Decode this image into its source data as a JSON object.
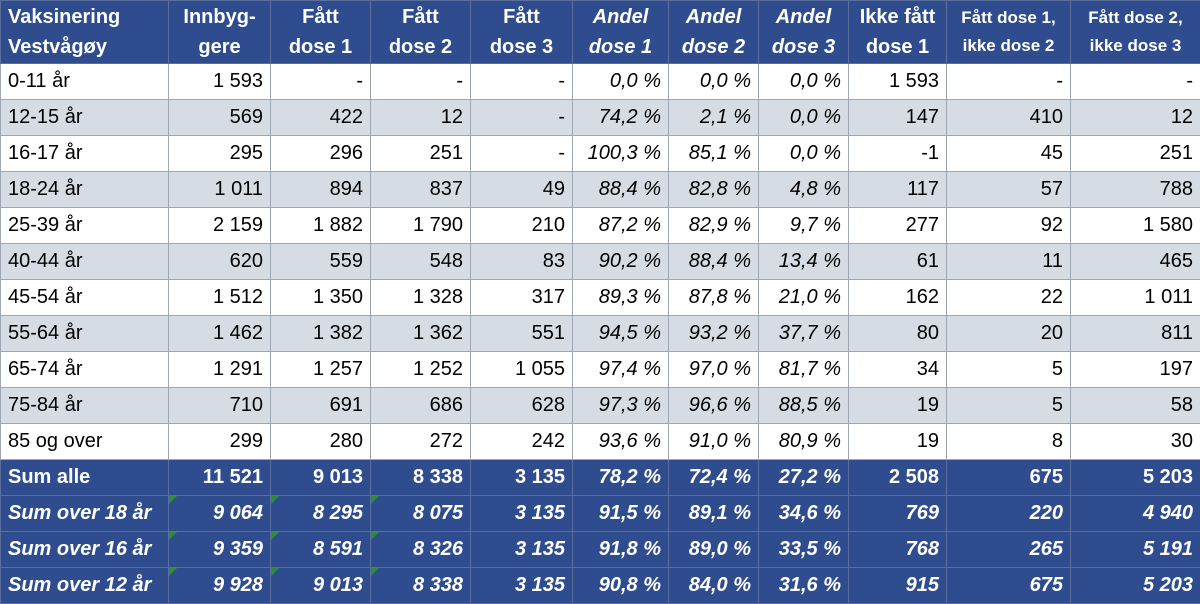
{
  "header": [
    {
      "l1": "Vaksinering",
      "l2": "Vestvågøy"
    },
    {
      "l1": "Innbyg-",
      "l2": "gere"
    },
    {
      "l1": "Fått",
      "l2": "dose 1"
    },
    {
      "l1": "Fått",
      "l2": "dose 2"
    },
    {
      "l1": "Fått",
      "l2": "dose 3"
    },
    {
      "l1": "Andel",
      "l2": "dose 1"
    },
    {
      "l1": "Andel",
      "l2": "dose 2"
    },
    {
      "l1": "Andel",
      "l2": "dose 3"
    },
    {
      "l1": "Ikke fått",
      "l2": "dose 1"
    },
    {
      "l1": "Fått dose 1,",
      "l2": "ikke dose 2"
    },
    {
      "l1": "Fått dose 2,",
      "l2": "ikke dose 3"
    }
  ],
  "rows": [
    [
      "0-11 år",
      "1 593",
      "-",
      "-",
      "-",
      "0,0 %",
      "0,0 %",
      "0,0 %",
      "1 593",
      "-",
      "-"
    ],
    [
      "12-15 år",
      "569",
      "422",
      "12",
      "-",
      "74,2 %",
      "2,1 %",
      "0,0 %",
      "147",
      "410",
      "12"
    ],
    [
      "16-17 år",
      "295",
      "296",
      "251",
      "-",
      "100,3 %",
      "85,1 %",
      "0,0 %",
      "1",
      "45",
      "251"
    ],
    [
      "18-24 år",
      "1 011",
      "894",
      "837",
      "49",
      "88,4 %",
      "82,8 %",
      "4,8 %",
      "117",
      "57",
      "788"
    ],
    [
      "25-39 år",
      "2 159",
      "1 882",
      "1 790",
      "210",
      "87,2 %",
      "82,9 %",
      "9,7 %",
      "277",
      "92",
      "1 580"
    ],
    [
      "40-44 år",
      "620",
      "559",
      "548",
      "83",
      "90,2 %",
      "88,4 %",
      "13,4 %",
      "61",
      "11",
      "465"
    ],
    [
      "45-54 år",
      "1 512",
      "1 350",
      "1 328",
      "317",
      "89,3 %",
      "87,8 %",
      "21,0 %",
      "162",
      "22",
      "1 011"
    ],
    [
      "55-64 år",
      "1 462",
      "1 382",
      "1 362",
      "551",
      "94,5 %",
      "93,2 %",
      "37,7 %",
      "80",
      "20",
      "811"
    ],
    [
      "65-74 år",
      "1 291",
      "1 257",
      "1 252",
      "1 055",
      "97,4 %",
      "97,0 %",
      "81,7 %",
      "34",
      "5",
      "197"
    ],
    [
      "75-84 år",
      "710",
      "691",
      "686",
      "628",
      "97,3 %",
      "96,6 %",
      "88,5 %",
      "19",
      "5",
      "58"
    ],
    [
      "85 og over",
      "299",
      "280",
      "272",
      "242",
      "93,6 %",
      "91,0 %",
      "80,9 %",
      "19",
      "8",
      "30"
    ]
  ],
  "negative_marker": "-",
  "sums": [
    [
      "Sum alle",
      "11 521",
      "9 013",
      "8 338",
      "3 135",
      "78,2 %",
      "72,4 %",
      "27,2 %",
      "2 508",
      "675",
      "5 203"
    ],
    [
      "Sum over 18 år",
      "9 064",
      "8 295",
      "8 075",
      "3 135",
      "91,5 %",
      "89,1 %",
      "34,6 %",
      "769",
      "220",
      "4 940"
    ],
    [
      "Sum over 16 år",
      "9 359",
      "8 591",
      "8 326",
      "3 135",
      "91,8 %",
      "89,0 %",
      "33,5 %",
      "768",
      "265",
      "5 191"
    ],
    [
      "Sum over 12 år",
      "9 928",
      "9 013",
      "8 338",
      "3 135",
      "90,8 %",
      "84,0 %",
      "31,6 %",
      "915",
      "675",
      "5 203"
    ]
  ],
  "colors": {
    "header_bg": "#2f4d8e",
    "band_bg": "#d6dce4",
    "note_marker": "#2e8b3a"
  }
}
